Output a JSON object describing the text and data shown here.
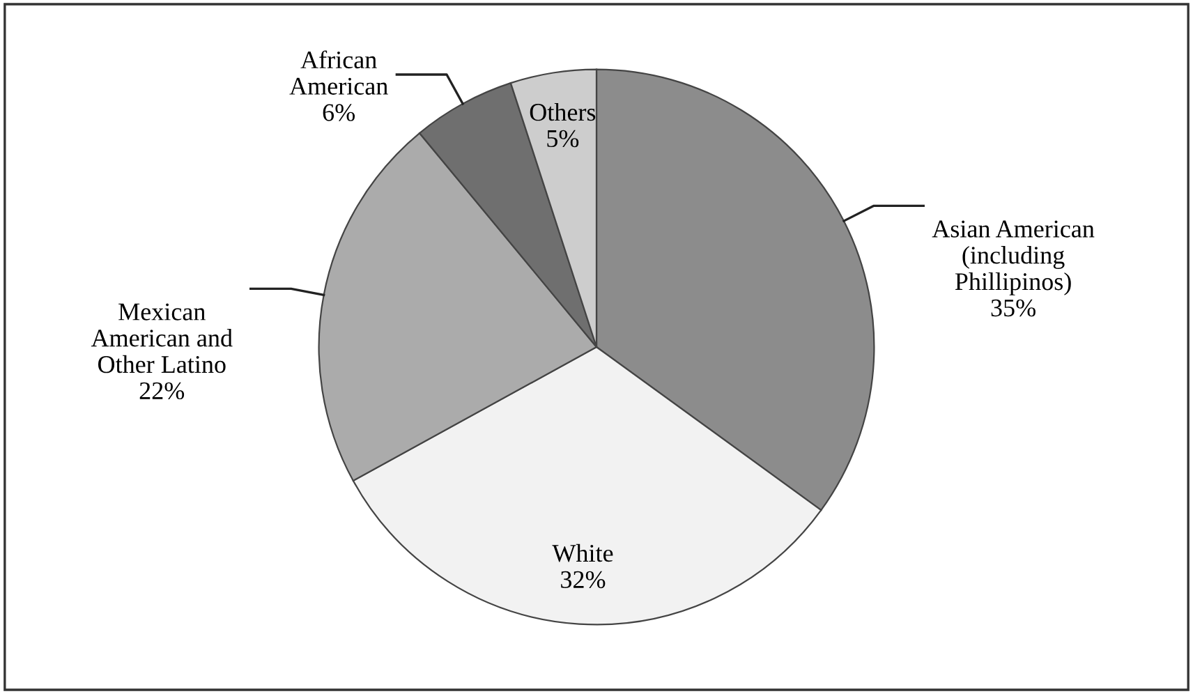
{
  "chart_data": {
    "type": "pie",
    "categories": [
      "Asian American\n(including\nPhillipinos)",
      "White",
      "Mexican\nAmerican and\nOther Latino",
      "African\nAmerican",
      "Others"
    ],
    "values": [
      35,
      32,
      22,
      6,
      5
    ],
    "value_labels": [
      "35%",
      "32%",
      "22%",
      "6%",
      "5%"
    ],
    "colors": [
      "#8c8c8c",
      "#f2f2f2",
      "#ababab",
      "#6f6f6f",
      "#cdcdcd"
    ]
  }
}
